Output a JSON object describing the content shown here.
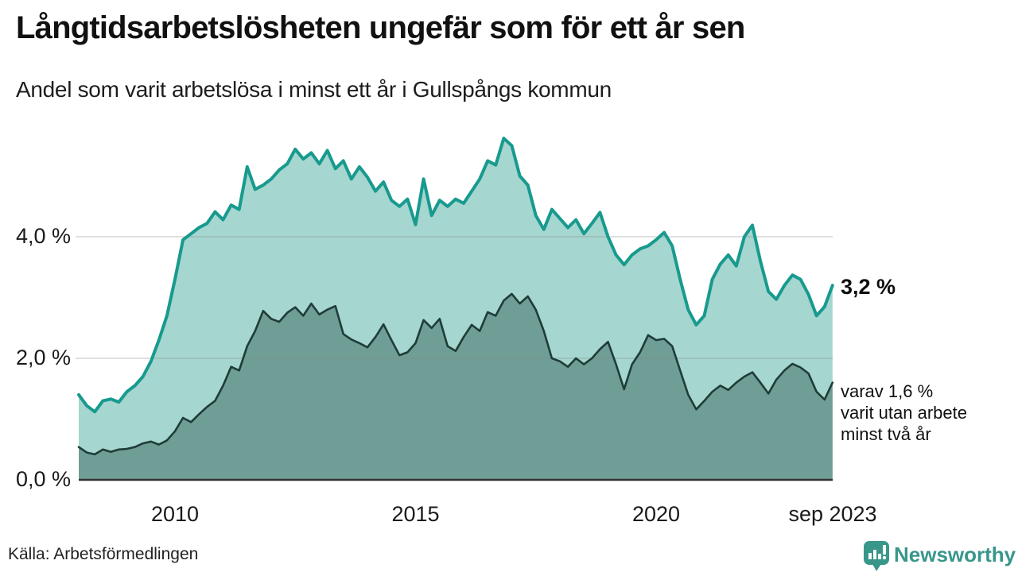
{
  "header": {
    "title": "Långtidsarbetslösheten ungefär som för ett år sen",
    "subtitle": "Andel som varit arbetslösa i minst ett år i Gullspångs kommun"
  },
  "chart_data": {
    "type": "area",
    "title": "Långtidsarbetslösheten ungefär som för ett år sen",
    "subtitle": "Andel som varit arbetslösa i minst ett år i Gullspångs kommun",
    "unit": "%",
    "x_range": [
      "2008-01",
      "2023-09"
    ],
    "x_step_months": 2,
    "ylim": [
      0,
      5.9
    ],
    "grid": true,
    "legend": "end-labels",
    "y_ticks": [
      {
        "label": "0,0 %",
        "value": 0
      },
      {
        "label": "2,0 %",
        "value": 2
      },
      {
        "label": "4,0 %",
        "value": 4
      }
    ],
    "x_ticks": [
      {
        "label": "2010",
        "year": 2010
      },
      {
        "label": "2015",
        "year": 2015
      },
      {
        "label": "2020",
        "year": 2020
      },
      {
        "label": "sep 2023",
        "year": 2023.67
      }
    ],
    "series": [
      {
        "name": "Andel som varit arbetslösa i minst ett år",
        "end_label": "3,2 %",
        "last_value": 3.2,
        "line_color": "#189a8e",
        "fill_color": "#a5d6cf",
        "values": [
          1.4,
          1.22,
          1.12,
          1.3,
          1.33,
          1.28,
          1.45,
          1.55,
          1.7,
          1.95,
          2.3,
          2.7,
          3.3,
          3.95,
          4.05,
          4.15,
          4.22,
          4.41,
          4.28,
          4.52,
          4.45,
          5.15,
          4.78,
          4.85,
          4.95,
          5.1,
          5.2,
          5.44,
          5.28,
          5.38,
          5.2,
          5.42,
          5.12,
          5.25,
          4.95,
          5.15,
          4.98,
          4.75,
          4.9,
          4.6,
          4.5,
          4.62,
          4.2,
          4.95,
          4.35,
          4.6,
          4.5,
          4.62,
          4.55,
          4.75,
          4.95,
          5.25,
          5.18,
          5.62,
          5.5,
          5.0,
          4.85,
          4.35,
          4.12,
          4.45,
          4.3,
          4.15,
          4.28,
          4.05,
          4.22,
          4.4,
          4.0,
          3.7,
          3.54,
          3.7,
          3.8,
          3.85,
          3.95,
          4.07,
          3.85,
          3.3,
          2.8,
          2.55,
          2.7,
          3.3,
          3.55,
          3.7,
          3.52,
          4.0,
          4.19,
          3.6,
          3.1,
          2.97,
          3.2,
          3.37,
          3.3,
          3.05,
          2.7,
          2.85,
          3.2
        ]
      },
      {
        "name": "Andel som varit utan arbete minst två år",
        "end_label_lines": [
          "varav 1,6 %",
          "varit utan arbete",
          "minst två år"
        ],
        "last_value": 1.6,
        "line_color": "#1f3c37",
        "fill_color": "#6f9e97",
        "values": [
          0.54,
          0.45,
          0.42,
          0.5,
          0.46,
          0.5,
          0.51,
          0.54,
          0.6,
          0.63,
          0.58,
          0.65,
          0.8,
          1.02,
          0.95,
          1.08,
          1.2,
          1.3,
          1.55,
          1.86,
          1.8,
          2.2,
          2.45,
          2.78,
          2.65,
          2.6,
          2.75,
          2.84,
          2.7,
          2.9,
          2.72,
          2.8,
          2.86,
          2.4,
          2.31,
          2.25,
          2.18,
          2.35,
          2.56,
          2.3,
          2.05,
          2.1,
          2.25,
          2.63,
          2.5,
          2.65,
          2.2,
          2.12,
          2.35,
          2.55,
          2.45,
          2.76,
          2.7,
          2.95,
          3.06,
          2.9,
          3.02,
          2.8,
          2.45,
          2.0,
          1.95,
          1.86,
          2.0,
          1.9,
          2.0,
          2.15,
          2.27,
          1.9,
          1.49,
          1.9,
          2.1,
          2.38,
          2.3,
          2.32,
          2.2,
          1.8,
          1.4,
          1.16,
          1.3,
          1.45,
          1.55,
          1.48,
          1.6,
          1.7,
          1.77,
          1.6,
          1.42,
          1.65,
          1.8,
          1.91,
          1.85,
          1.75,
          1.45,
          1.32,
          1.6
        ]
      }
    ]
  },
  "footer": {
    "source": "Källa: Arbetsförmedlingen",
    "brand": "Newsworthy"
  },
  "colors": {
    "background": "#ffffff",
    "title_text": "#111111",
    "body_text": "#1a1a1a",
    "grid_line": "#8a8a8a",
    "axis_line": "#333333",
    "series1_line": "#189a8e",
    "series1_fill": "#a5d6cf",
    "series2_line": "#1f3c37",
    "series2_fill": "#6f9e97",
    "brand_teal": "#38968b"
  }
}
